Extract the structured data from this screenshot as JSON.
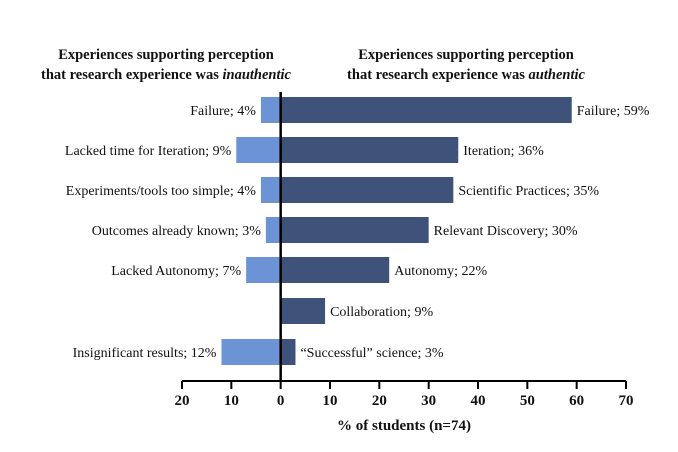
{
  "chart_data": {
    "type": "bar",
    "orientation": "horizontal-diverging",
    "left_header": {
      "line1": "Experiences supporting perception",
      "line2_prefix": "that research experience was ",
      "line2_emphasis": "inauthentic"
    },
    "right_header": {
      "line1": "Experiences supporting perception",
      "line2_prefix": "that research experience was ",
      "line2_emphasis": "authentic"
    },
    "xlabel": "% of students (n=74)",
    "xlim": [
      -20,
      70
    ],
    "xticks": [
      -20,
      -10,
      0,
      10,
      20,
      30,
      40,
      50,
      60,
      70
    ],
    "xtick_labels": [
      "20",
      "10",
      "0",
      "10",
      "20",
      "30",
      "40",
      "50",
      "60",
      "70"
    ],
    "colors": {
      "inauthentic": "#6b93d6",
      "authentic": "#3f5279"
    },
    "series": [
      {
        "name": "inauthentic",
        "values": [
          4,
          9,
          4,
          3,
          7,
          null,
          12
        ],
        "labels": [
          "Failure; 4%",
          "Lacked time for Iteration; 9%",
          "Experiments/tools too simple; 4%",
          "Outcomes already known; 3%",
          "Lacked Autonomy; 7%",
          "",
          "Insignificant results; 12%"
        ]
      },
      {
        "name": "authentic",
        "values": [
          59,
          36,
          35,
          30,
          22,
          9,
          3
        ],
        "labels": [
          "Failure; 59%",
          "Iteration; 36%",
          "Scientific Practices; 35%",
          "Relevant Discovery; 30%",
          "Autonomy; 22%",
          "Collaboration; 9%",
          "“Successful” science; 3%"
        ]
      }
    ],
    "grid": false,
    "legend": "none"
  }
}
